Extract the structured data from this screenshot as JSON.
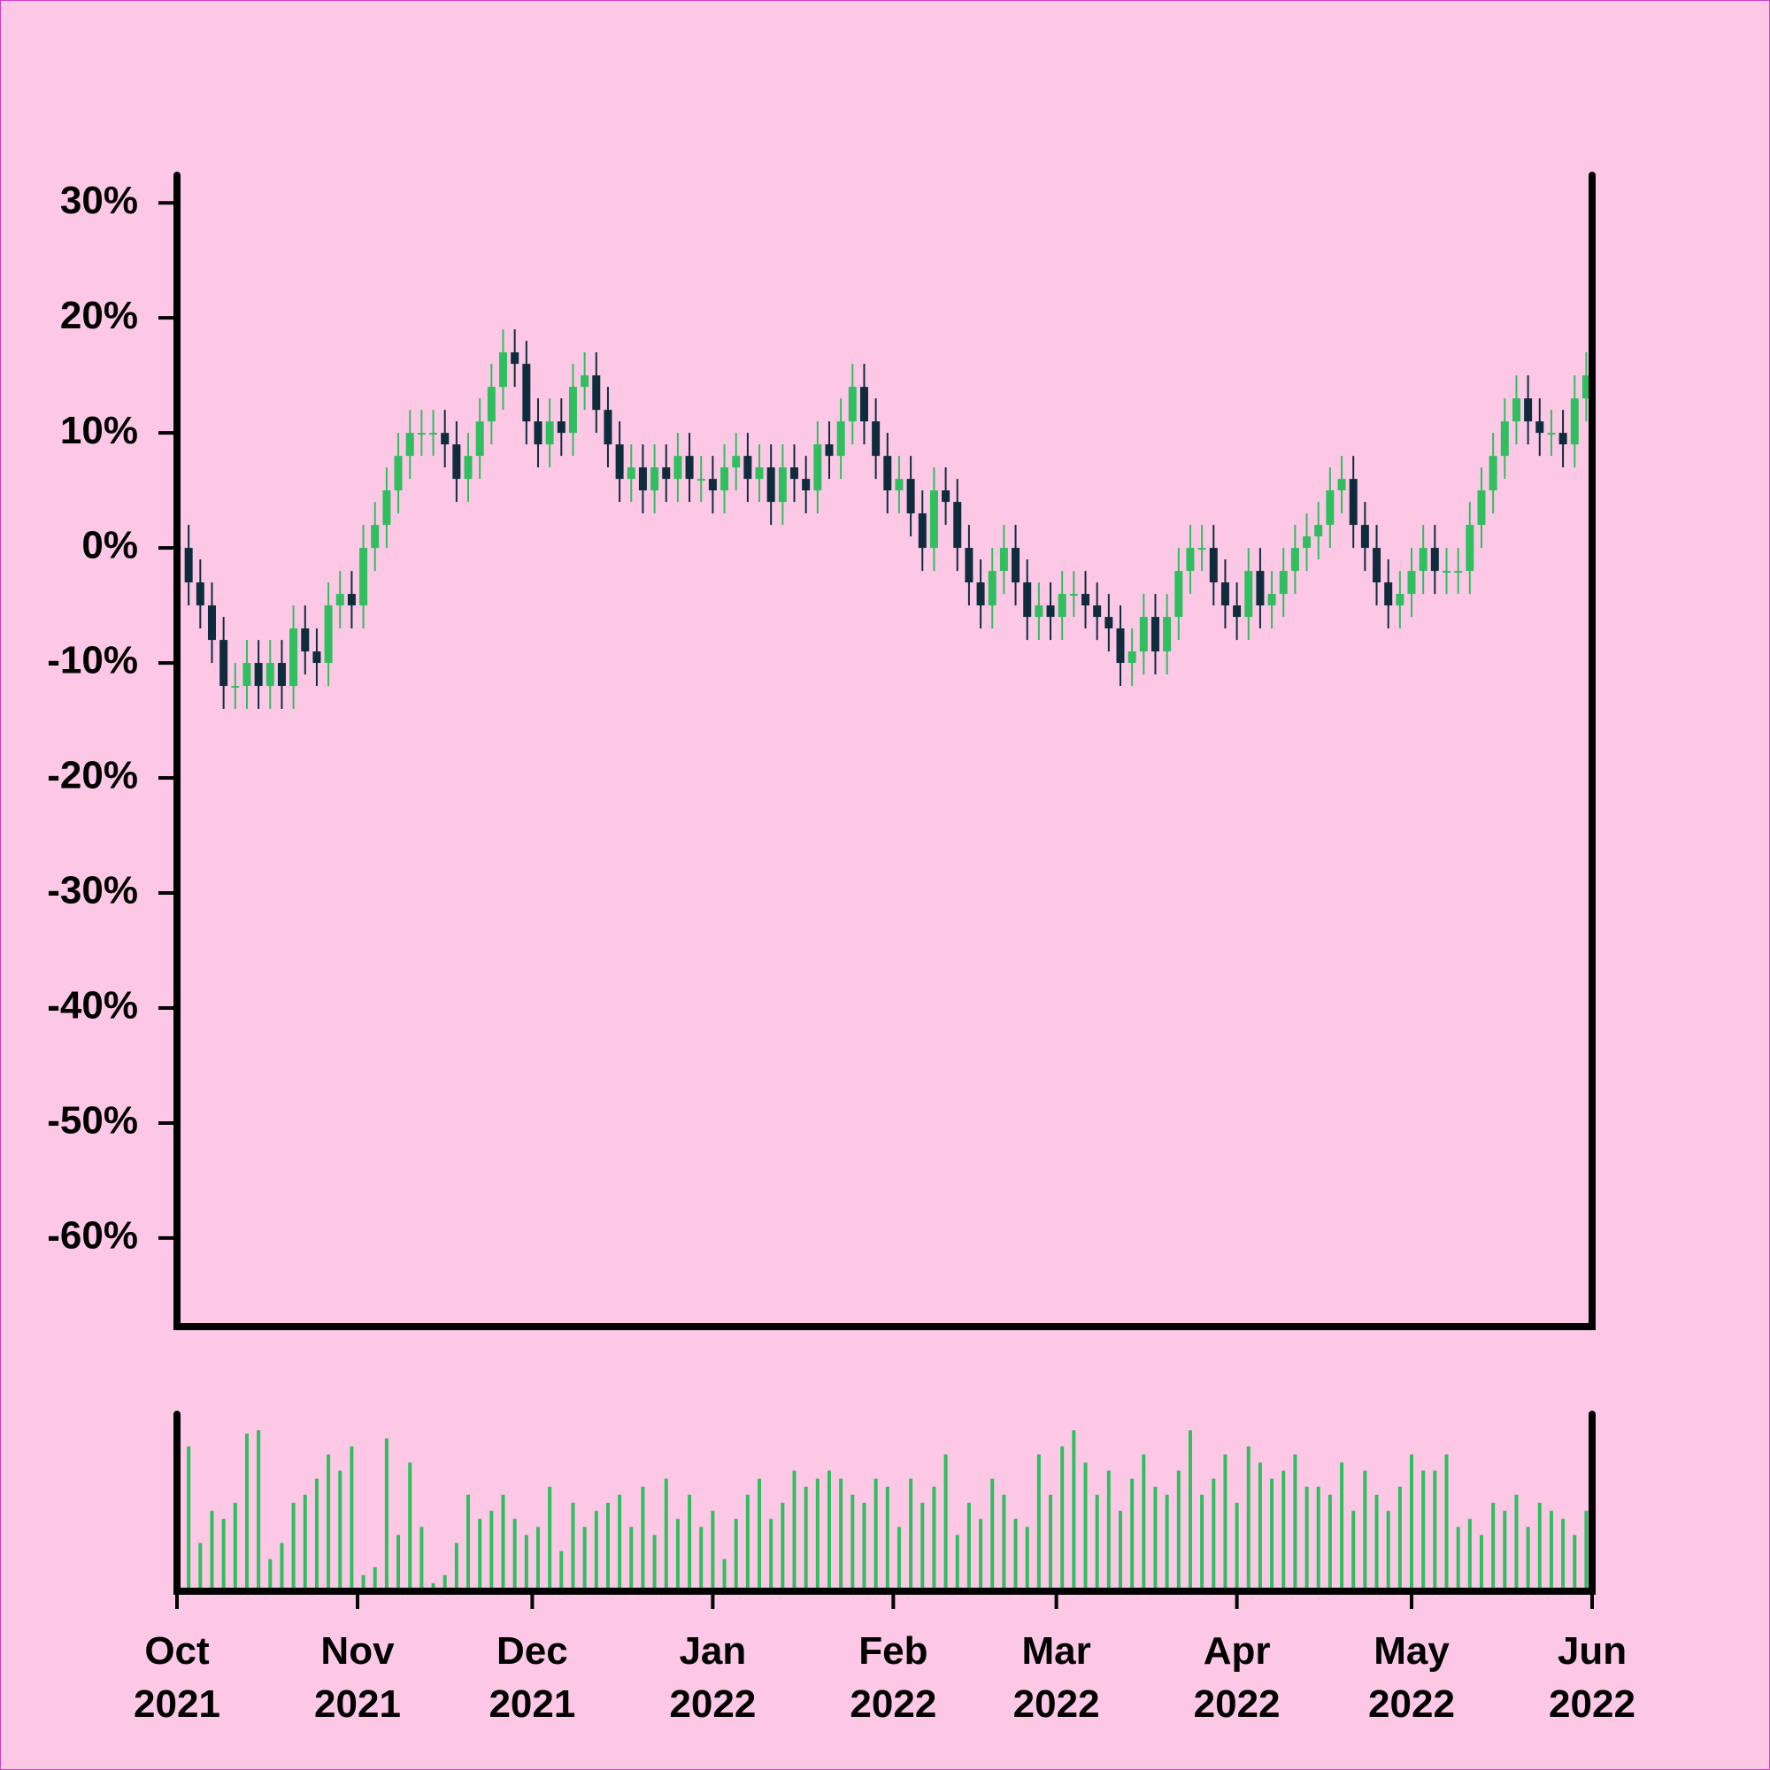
{
  "chart_data": {
    "type": "candlestick",
    "x": [
      0,
      2,
      4,
      6,
      8,
      10,
      12,
      14,
      16,
      18,
      20,
      22,
      24,
      26,
      28,
      30,
      32,
      34,
      36,
      38,
      40,
      42,
      44,
      46,
      48,
      50,
      52,
      54,
      56,
      58,
      60,
      62,
      64,
      66,
      68,
      70,
      72,
      74,
      76,
      78,
      80,
      82,
      84,
      86,
      88,
      90,
      92,
      94,
      96,
      98,
      100,
      102,
      104,
      106,
      108,
      110,
      112,
      114,
      116,
      118,
      120,
      122,
      124,
      126,
      128,
      130,
      132,
      134,
      136,
      138,
      140,
      142,
      144,
      146,
      148,
      150,
      152,
      154,
      156,
      158,
      160,
      162,
      164,
      166,
      168,
      170,
      172,
      174,
      176,
      178,
      180,
      182,
      184,
      186,
      188,
      190,
      192,
      194,
      196,
      198,
      200,
      202,
      204,
      206,
      208,
      210,
      212,
      214,
      216,
      218,
      220,
      222,
      224,
      226,
      228,
      230,
      232,
      234,
      236,
      238,
      240,
      242
    ],
    "open": [
      0,
      0,
      -3,
      -5,
      -8,
      -12,
      -12,
      -10,
      -12,
      -10,
      -12,
      -7,
      -9,
      -10,
      -5,
      -4,
      -5,
      0,
      2,
      5,
      8,
      10,
      10,
      10,
      9,
      6,
      8,
      11,
      14,
      17,
      16,
      11,
      9,
      11,
      10,
      14,
      15,
      12,
      9,
      6,
      7,
      5,
      7,
      6,
      8,
      6,
      6,
      5,
      7,
      8,
      6,
      7,
      4,
      7,
      6,
      5,
      9,
      8,
      11,
      14,
      11,
      8,
      5,
      6,
      3,
      0,
      5,
      4,
      0,
      -3,
      -5,
      -2,
      0,
      -3,
      -6,
      -5,
      -6,
      -4,
      -4,
      -5,
      -6,
      -7,
      -10,
      -9,
      -6,
      -9,
      -6,
      -2,
      0,
      0,
      -3,
      -5,
      -6,
      -2,
      -5,
      -4,
      -2,
      0,
      1,
      2,
      5,
      6,
      2,
      0,
      -3,
      -5,
      -4,
      -2,
      0,
      -2,
      -2,
      -2,
      2,
      5,
      8,
      11,
      13,
      11,
      10,
      10,
      9,
      13
    ],
    "high": [
      2,
      2,
      -1,
      -3,
      -6,
      -10,
      -8,
      -8,
      -8,
      -8,
      -5,
      -5,
      -7,
      -3,
      -2,
      -2,
      2,
      4,
      7,
      10,
      12,
      12,
      12,
      12,
      11,
      10,
      13,
      16,
      19,
      19,
      18,
      13,
      13,
      13,
      16,
      17,
      17,
      14,
      11,
      9,
      9,
      9,
      9,
      10,
      10,
      8,
      8,
      9,
      10,
      10,
      9,
      9,
      9,
      9,
      8,
      11,
      11,
      13,
      16,
      16,
      13,
      10,
      8,
      8,
      5,
      7,
      7,
      6,
      2,
      -1,
      0,
      2,
      2,
      -1,
      -3,
      -3,
      -2,
      -2,
      -2,
      -3,
      -4,
      -5,
      -7,
      -4,
      -4,
      -4,
      0,
      2,
      2,
      2,
      -1,
      -3,
      0,
      0,
      -2,
      0,
      2,
      3,
      4,
      7,
      8,
      8,
      4,
      2,
      -1,
      -2,
      0,
      2,
      2,
      0,
      0,
      4,
      7,
      10,
      13,
      15,
      15,
      13,
      12,
      12,
      15,
      17
    ],
    "low": [
      -2,
      -5,
      -7,
      -10,
      -14,
      -14,
      -14,
      -14,
      -14,
      -14,
      -14,
      -11,
      -12,
      -12,
      -7,
      -7,
      -7,
      -2,
      0,
      3,
      6,
      8,
      8,
      7,
      4,
      4,
      6,
      9,
      12,
      14,
      9,
      7,
      7,
      8,
      8,
      12,
      10,
      7,
      4,
      4,
      3,
      3,
      4,
      4,
      4,
      4,
      3,
      3,
      5,
      4,
      4,
      2,
      2,
      4,
      3,
      3,
      6,
      6,
      9,
      9,
      6,
      3,
      3,
      1,
      -2,
      -2,
      2,
      -2,
      -5,
      -7,
      -7,
      -4,
      -5,
      -8,
      -8,
      -8,
      -8,
      -6,
      -7,
      -8,
      -9,
      -12,
      -12,
      -11,
      -11,
      -11,
      -8,
      -4,
      -2,
      -5,
      -7,
      -8,
      -8,
      -7,
      -7,
      -6,
      -4,
      -2,
      -1,
      0,
      3,
      0,
      -2,
      -5,
      -7,
      -7,
      -6,
      -4,
      -4,
      -4,
      -4,
      -4,
      0,
      3,
      6,
      9,
      9,
      8,
      8,
      7,
      7,
      11
    ],
    "close": [
      0,
      -3,
      -5,
      -8,
      -12,
      -12,
      -10,
      -12,
      -10,
      -12,
      -7,
      -9,
      -10,
      -5,
      -4,
      -5,
      0,
      2,
      5,
      8,
      10,
      10,
      10,
      9,
      6,
      8,
      11,
      14,
      17,
      16,
      11,
      9,
      11,
      10,
      14,
      15,
      12,
      9,
      6,
      7,
      5,
      7,
      6,
      8,
      6,
      6,
      5,
      7,
      8,
      6,
      7,
      4,
      7,
      6,
      5,
      9,
      8,
      11,
      14,
      11,
      8,
      5,
      6,
      3,
      0,
      5,
      4,
      0,
      -3,
      -5,
      -2,
      0,
      -3,
      -6,
      -5,
      -6,
      -4,
      -4,
      -5,
      -6,
      -7,
      -10,
      -9,
      -6,
      -9,
      -6,
      -2,
      0,
      0,
      -3,
      -5,
      -6,
      -2,
      -5,
      -4,
      -2,
      0,
      1,
      2,
      5,
      6,
      2,
      0,
      -3,
      -5,
      -4,
      -2,
      0,
      -2,
      -2,
      -2,
      2,
      5,
      8,
      11,
      13,
      11,
      10,
      10,
      9,
      13,
      15
    ],
    "volume": [
      75,
      90,
      30,
      50,
      45,
      55,
      98,
      100,
      20,
      30,
      55,
      60,
      70,
      85,
      75,
      90,
      10,
      15,
      95,
      35,
      80,
      40,
      5,
      10,
      30,
      60,
      45,
      50,
      60,
      45,
      35,
      40,
      65,
      25,
      55,
      40,
      50,
      55,
      60,
      40,
      65,
      35,
      70,
      45,
      60,
      40,
      50,
      20,
      45,
      60,
      70,
      45,
      55,
      75,
      65,
      70,
      75,
      70,
      60,
      55,
      70,
      65,
      40,
      70,
      55,
      65,
      85,
      35,
      55,
      45,
      70,
      60,
      45,
      40,
      85,
      60,
      90,
      100,
      80,
      60,
      75,
      50,
      70,
      85,
      65,
      60,
      75,
      100,
      60,
      70,
      85,
      55,
      90,
      80,
      70,
      75,
      85,
      65,
      65,
      60,
      80,
      50,
      75,
      60,
      50,
      65,
      85,
      75,
      75,
      85,
      40,
      45,
      35,
      55,
      50,
      60,
      40,
      55,
      50,
      45,
      35,
      50
    ],
    "up_color": "#2fbf5e",
    "down_color": "#0f2c3d",
    "volume_color": "#2fbf5e",
    "xlim": [
      0,
      243
    ],
    "xticks": [
      {
        "value": 0,
        "label": "Oct\n2021"
      },
      {
        "value": 31,
        "label": "Nov\n2021"
      },
      {
        "value": 61,
        "label": "Dec\n2021"
      },
      {
        "value": 92,
        "label": "Jan\n2022"
      },
      {
        "value": 123,
        "label": "Feb\n2022"
      },
      {
        "value": 151,
        "label": "Mar\n2022"
      },
      {
        "value": 182,
        "label": "Apr\n2022"
      },
      {
        "value": 212,
        "label": "May\n2022"
      },
      {
        "value": 243,
        "label": "Jun\n2022"
      }
    ],
    "ylim": [
      -67.7,
      32.4
    ],
    "yticks": [
      {
        "value": 30,
        "label": "30%"
      },
      {
        "value": 20,
        "label": "20%"
      },
      {
        "value": 10,
        "label": "10%"
      },
      {
        "value": 0,
        "label": "0%"
      },
      {
        "value": -10,
        "label": "-10%"
      },
      {
        "value": -20,
        "label": "-20%"
      },
      {
        "value": -30,
        "label": "-30%"
      },
      {
        "value": -40,
        "label": "-40%"
      },
      {
        "value": -50,
        "label": "-50%"
      },
      {
        "value": -60,
        "label": "-60%"
      }
    ],
    "volume_ylim": [
      0,
      110
    ]
  }
}
